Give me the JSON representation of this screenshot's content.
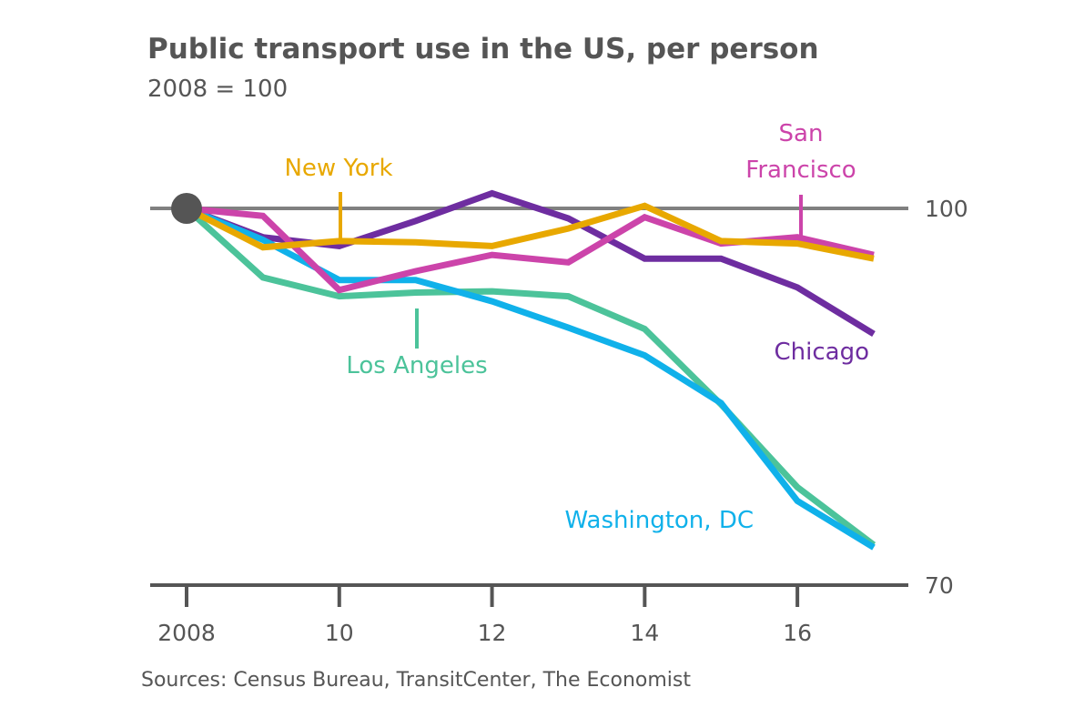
{
  "chart_data": {
    "type": "line",
    "title": "Public transport use in the US, per person",
    "subtitle": "2008 = 100",
    "source": "Sources: Census Bureau, TransitCenter, The Economist",
    "x": [
      2008,
      2009,
      2010,
      2011,
      2012,
      2013,
      2014,
      2015,
      2016,
      2017
    ],
    "x_ticks": [
      2008,
      2010,
      2012,
      2014,
      2016
    ],
    "x_tick_labels": [
      "2008",
      "10",
      "12",
      "14",
      "16"
    ],
    "xlim": [
      2008,
      2017
    ],
    "ylim": [
      70,
      100
    ],
    "y_ticks": [
      70,
      100
    ],
    "y_tick_labels": [
      "70",
      "100"
    ],
    "baseline": 100,
    "grid": false,
    "series": [
      {
        "name": "New York",
        "color": "#E8A800",
        "values": [
          100,
          96.9,
          97.4,
          97.3,
          97.0,
          98.4,
          100.2,
          97.4,
          97.2,
          96.0
        ],
        "label_lines": [
          "New York"
        ]
      },
      {
        "name": "San Francisco",
        "color": "#CC44AA",
        "values": [
          100,
          99.4,
          93.5,
          95.0,
          96.3,
          95.7,
          99.3,
          97.2,
          97.7,
          96.3
        ],
        "label_lines": [
          "San",
          "Francisco"
        ]
      },
      {
        "name": "Chicago",
        "color": "#6E2DA0",
        "values": [
          100,
          97.7,
          97.0,
          99.0,
          101.2,
          99.2,
          96.0,
          96.0,
          93.7,
          90.0
        ],
        "label_lines": [
          "Chicago"
        ]
      },
      {
        "name": "Los Angeles",
        "color": "#4CC39A",
        "values": [
          100,
          94.5,
          93.0,
          93.3,
          93.4,
          93.0,
          90.4,
          84.4,
          77.8,
          73.2
        ],
        "label_lines": [
          "Los Angeles"
        ]
      },
      {
        "name": "Washington, DC",
        "color": "#10B1EA",
        "values": [
          100,
          97.5,
          94.3,
          94.3,
          92.6,
          90.5,
          88.3,
          84.5,
          76.7,
          73.0
        ],
        "label_lines": [
          "Washington, DC"
        ]
      }
    ]
  }
}
